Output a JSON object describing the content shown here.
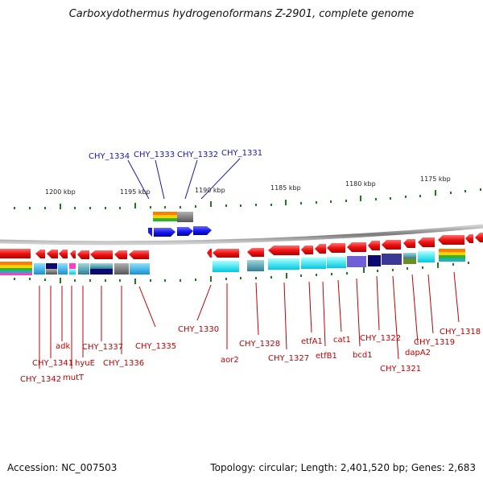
{
  "title": "Carboxydothermus hydrogenoformans Z-2901, complete genome",
  "accession_text": "Accession: NC_007503",
  "topology_text": "Topology: circular; Length: 2,401,520 bp; Genes: 2,683",
  "colors": {
    "forward_gene": "#1a1af0",
    "reverse_gene": "#ee1111",
    "label_forward": "#1a1aa6",
    "label_reverse": "#c00000",
    "ruler_tick": "#1f7a1f",
    "backbone": "#8c8c8c"
  },
  "ruler_labels": [
    "1200 kbp",
    "1195 kbp",
    "1190 kbp",
    "1185 kbp",
    "1180 kbp",
    "1175 kbp"
  ],
  "top_gene_labels": [
    "CHY_1334",
    "CHY_1333",
    "CHY_1332",
    "CHY_1331"
  ],
  "bottom_gene_labels": [
    "CHY_1342",
    "CHY_1341",
    "adk",
    "mutT",
    "hyuE",
    "CHY_1337",
    "CHY_1336",
    "CHY_1335",
    "CHY_1330",
    "aor2",
    "CHY_1328",
    "CHY_1327",
    "etfA1",
    "etfB1",
    "cat1",
    "bcd1",
    "CHY_1322",
    "CHY_1321",
    "dapA2",
    "CHY_1319",
    "CHY_1318"
  ]
}
